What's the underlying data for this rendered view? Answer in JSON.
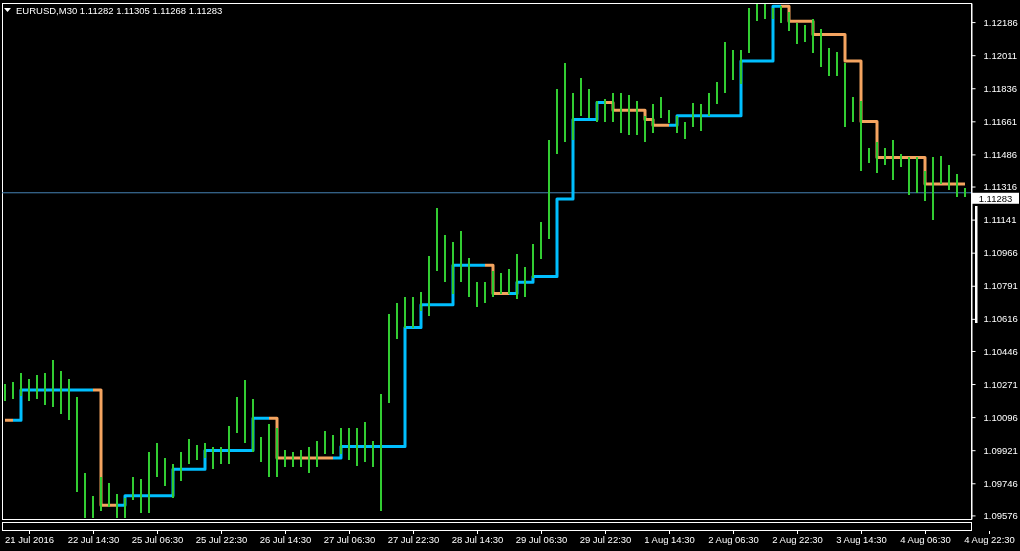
{
  "chart_data": {
    "type": "bar",
    "title": "EURUSD,M30 1.11282 1.11305 1.11268 1.11283",
    "categories": [
      null,
      null,
      null,
      "21 Jul 2016",
      null,
      null,
      null,
      null,
      null,
      null,
      null,
      "22 Jul 14:30",
      null,
      null,
      null,
      null,
      null,
      null,
      null,
      "25 Jul 06:30",
      null,
      null,
      null,
      null,
      null,
      null,
      null,
      "25 Jul 22:30",
      null,
      null,
      null,
      null,
      null,
      null,
      null,
      "26 Jul 14:30",
      null,
      null,
      null,
      null,
      null,
      null,
      null,
      "27 Jul 06:30",
      null,
      null,
      null,
      null,
      null,
      null,
      null,
      "27 Jul 22:30",
      null,
      null,
      null,
      null,
      null,
      null,
      null,
      "28 Jul 14:30",
      null,
      null,
      null,
      null,
      null,
      null,
      null,
      "29 Jul 06:30",
      null,
      null,
      null,
      null,
      null,
      null,
      null,
      "29 Jul 22:30",
      null,
      null,
      null,
      null,
      null,
      null,
      null,
      "1 Aug 14:30",
      null,
      null,
      null,
      null,
      null,
      null,
      null,
      "2 Aug 06:30",
      null,
      null,
      null,
      null,
      null,
      null,
      null,
      "2 Aug 22:30",
      null,
      null,
      null,
      null,
      null,
      null,
      null,
      "3 Aug 14:30",
      null,
      null,
      null,
      null,
      null,
      null,
      null,
      "4 Aug 06:30",
      null,
      null,
      null,
      null,
      null,
      null,
      null,
      "4 Aug 22:30"
    ],
    "series": [
      {
        "color": "#32cd32",
        "base": [
          1.1018,
          1.1019,
          1.1021,
          1.1018,
          1.1019,
          1.1016,
          1.1015,
          1.1011,
          1.1008,
          1.097,
          1.0956,
          1.0956,
          1.096,
          1.0962,
          1.0956,
          1.0956,
          1.0966,
          1.0959,
          1.0959,
          1.0978,
          1.0973,
          1.0967,
          1.0976,
          1.0985,
          1.0987,
          1.0988,
          1.0982,
          1.0985,
          1.0985,
          1.1001,
          1.0996,
          1.0991,
          1.0986,
          1.0978,
          1.0978,
          1.0983,
          1.0983,
          1.0983,
          1.098,
          1.0983,
          1.099,
          1.099,
          1.099,
          1.0987,
          1.0984,
          1.0986,
          1.0983,
          1.096,
          1.1017,
          1.1051,
          1.1057,
          1.1057,
          1.1066,
          1.1063,
          1.1087,
          1.1081,
          1.1075,
          1.1081,
          1.1073,
          1.1068,
          1.107,
          1.1073,
          1.1075,
          1.1075,
          1.1072,
          1.1073,
          1.1083,
          1.1093,
          1.1104,
          1.1149,
          1.1155,
          1.1156,
          1.1169,
          1.1168,
          1.1166,
          1.1166,
          1.1166,
          1.116,
          1.1159,
          1.1159,
          1.1155,
          1.116,
          1.1168,
          1.1165,
          1.116,
          1.1157,
          1.1163,
          1.1161,
          1.1169,
          1.1175,
          1.1181,
          1.1188,
          1.1186,
          1.1202,
          1.1219,
          1.122,
          1.122,
          1.1218,
          1.1214,
          1.1207,
          1.1208,
          1.1202,
          1.1195,
          1.119,
          1.119,
          1.1163,
          1.1166,
          1.114,
          1.1144,
          1.1139,
          1.1143,
          1.1135,
          1.1142,
          1.1127,
          1.1128,
          1.1124,
          1.1114,
          1.1133,
          1.113,
          1.1126,
          1.1126,
          null,
          null,
          null
        ],
        "values": [
          0.0009,
          0.0009,
          0.0012,
          0.0012,
          0.0013,
          0.0017,
          0.0025,
          0.0023,
          0.0022,
          0.005,
          0.0024,
          0.0012,
          0.0018,
          0.0013,
          0.0013,
          0.0011,
          0.0012,
          0.0018,
          0.0032,
          0.0018,
          0.0015,
          0.0018,
          0.0015,
          0.0013,
          0.0008,
          0.0008,
          0.0012,
          0.0009,
          0.002,
          0.0019,
          0.0033,
          0.0028,
          0.0013,
          0.0028,
          0.0026,
          0.0009,
          0.0008,
          0.0009,
          0.0014,
          0.0014,
          0.0012,
          0.001,
          0.0014,
          0.0017,
          0.002,
          0.0021,
          0.0014,
          0.0062,
          0.0047,
          0.0019,
          0.0016,
          0.0016,
          0.001,
          0.0032,
          0.0033,
          0.0025,
          0.0027,
          0.0027,
          0.0021,
          0.0013,
          0.0011,
          0.0014,
          0.0011,
          0.0013,
          0.0024,
          0.0016,
          0.0018,
          0.002,
          0.0052,
          0.0034,
          0.0042,
          0.0025,
          0.002,
          0.0015,
          0.0011,
          0.0012,
          0.0015,
          0.0021,
          0.0021,
          0.0018,
          0.0014,
          0.0015,
          0.0011,
          0.0007,
          0.0009,
          0.0009,
          0.0013,
          0.0014,
          0.0012,
          0.0012,
          0.0027,
          0.0016,
          0.0018,
          0.0024,
          0.0009,
          0.0008,
          0.0006,
          0.0009,
          0.001,
          0.0011,
          0.0009,
          0.0018,
          0.002,
          0.0015,
          0.0013,
          0.0034,
          0.0013,
          0.0037,
          0.0008,
          0.0016,
          0.0009,
          0.0021,
          0.0007,
          0.002,
          0.0019,
          0.0016,
          0.0033,
          0.0015,
          0.0013,
          0.0012,
          0.0005,
          null,
          null,
          null
        ]
      },
      {
        "type": "step",
        "color": "#00bfff",
        "values": [
          null,
          1.1008,
          1.1024,
          1.1024,
          1.1024,
          1.1024,
          1.1024,
          1.1024,
          1.1024,
          1.1024,
          1.1024,
          1.1024,
          null,
          null,
          1.0963,
          1.0968,
          1.0968,
          1.0968,
          1.0968,
          1.0968,
          1.0968,
          1.0982,
          1.0982,
          1.0982,
          1.0982,
          1.0992,
          1.0992,
          1.0992,
          1.0992,
          1.0992,
          1.0992,
          1.1009,
          1.1009,
          1.1009,
          null,
          null,
          null,
          null,
          null,
          null,
          null,
          1.0988,
          1.0994,
          1.0994,
          1.0994,
          1.0994,
          1.0994,
          1.0994,
          1.0994,
          1.0994,
          1.1057,
          1.1057,
          1.1069,
          1.1069,
          1.1069,
          1.1069,
          1.109,
          1.109,
          1.109,
          1.109,
          1.109,
          null,
          null,
          1.1075,
          1.1081,
          1.1081,
          1.1084,
          1.1084,
          1.1084,
          1.1125,
          1.1125,
          1.1167,
          1.1167,
          1.1167,
          1.1176,
          1.1176,
          null,
          null,
          null,
          null,
          null,
          null,
          null,
          1.1164,
          1.1169,
          1.1169,
          1.1169,
          1.1169,
          1.1169,
          1.1169,
          1.1169,
          1.1169,
          1.1198,
          1.1198,
          1.1198,
          1.1198,
          1.1227,
          1.1227,
          null,
          null,
          null,
          null,
          null,
          null,
          null,
          null,
          null,
          null,
          null,
          null,
          null,
          null,
          null,
          null,
          null,
          null,
          null,
          null,
          null,
          null,
          null,
          null,
          null,
          null
        ]
      },
      {
        "type": "step",
        "color": "#f4a460",
        "values": [
          1.1008,
          1.1008,
          null,
          null,
          null,
          null,
          null,
          null,
          null,
          null,
          null,
          1.1024,
          1.0963,
          1.0963,
          1.0963,
          null,
          null,
          null,
          null,
          null,
          null,
          null,
          null,
          null,
          null,
          null,
          null,
          null,
          null,
          null,
          null,
          null,
          null,
          1.1009,
          1.0988,
          1.0988,
          1.0988,
          1.0988,
          1.0988,
          1.0988,
          1.0988,
          1.0988,
          null,
          null,
          null,
          null,
          null,
          null,
          null,
          null,
          null,
          null,
          null,
          null,
          null,
          null,
          null,
          null,
          null,
          null,
          1.109,
          1.1075,
          1.1075,
          1.1075,
          null,
          null,
          null,
          null,
          null,
          null,
          null,
          null,
          null,
          null,
          null,
          1.1176,
          1.1172,
          1.1172,
          1.1172,
          1.1172,
          1.1167,
          1.1164,
          1.1164,
          1.1164,
          null,
          null,
          null,
          null,
          null,
          null,
          null,
          null,
          null,
          null,
          null,
          null,
          null,
          1.1227,
          1.1219,
          1.1219,
          1.1219,
          1.1212,
          1.1212,
          1.1212,
          1.1212,
          1.1198,
          1.1198,
          1.1166,
          1.1166,
          1.1147,
          1.1147,
          1.1147,
          1.1147,
          1.1147,
          1.1147,
          1.1133,
          1.1133,
          1.1133,
          1.1133,
          1.1133,
          1.1133,
          null,
          null,
          null
        ]
      }
    ],
    "ylim": [
      1.09557,
      1.12287
    ],
    "yticks": [
      1.09576,
      1.09746,
      1.09921,
      1.10096,
      1.10271,
      1.10446,
      1.10616,
      1.10791,
      1.10966,
      1.11141,
      1.11316,
      1.11486,
      1.11661,
      1.11836,
      1.12011,
      1.12186
    ],
    "ref_lines": [
      {
        "axis": "y",
        "value": 1.11283,
        "label": "1.11283",
        "color": "#4682b4"
      }
    ]
  }
}
